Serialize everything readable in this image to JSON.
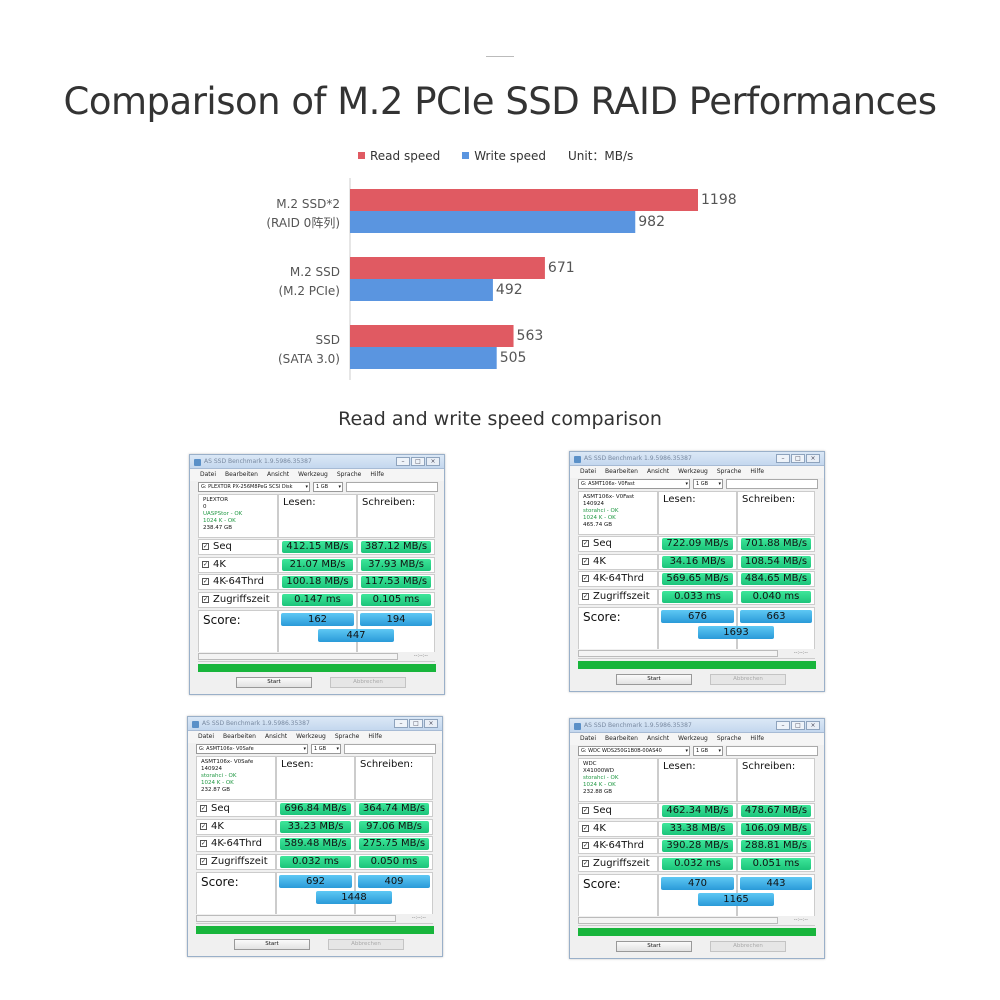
{
  "page": {
    "title": "Comparison of M.2 PCIe SSD RAID Performances",
    "subtitle": "Read and write speed comparison"
  },
  "colors": {
    "read": "#e05a62",
    "write": "#5a95e0",
    "axis": "#cccccc"
  },
  "chart_data": {
    "type": "bar",
    "orientation": "horizontal",
    "title": "Comparison of M.2 PCIe SSD RAID Performances",
    "legend": [
      "Read speed",
      "Write speed"
    ],
    "unit": "Unit：MB/s",
    "categories": [
      {
        "line1": "M.2  SSD*2",
        "line2": "(RAID 0阵列)"
      },
      {
        "line1": "M.2 SSD",
        "line2": "(M.2 PCIe)"
      },
      {
        "line1": "SSD",
        "line2": "(SATA 3.0)"
      }
    ],
    "series": [
      {
        "name": "Read speed",
        "values": [
          1198,
          671,
          563
        ]
      },
      {
        "name": "Write speed",
        "values": [
          982,
          492,
          505
        ]
      }
    ],
    "xlim": [
      0,
      1198
    ]
  },
  "windows": [
    {
      "title": "AS SSD Benchmark 1.9.5986.35387",
      "menu": [
        "Datei",
        "Bearbeiten",
        "Ansicht",
        "Werkzeug",
        "Sprache",
        "Hilfe"
      ],
      "drive": "G: PLEXTOR PX-256M8PeG SCSI Disk",
      "size": "1 GB",
      "info": [
        "PLEXTOR",
        "0",
        "UASPStor - OK",
        "1024 K - OK",
        "238.47 GB"
      ],
      "col_read": "Lesen:",
      "col_write": "Schreiben:",
      "rows": [
        {
          "label": "Seq",
          "read": "412.15 MB/s",
          "write": "387.12 MB/s"
        },
        {
          "label": "4K",
          "read": "21.07 MB/s",
          "write": "37.93 MB/s"
        },
        {
          "label": "4K-64Thrd",
          "read": "100.18 MB/s",
          "write": "117.53 MB/s"
        },
        {
          "label": "Zugriffszeit",
          "read": "0.147 ms",
          "write": "0.105 ms"
        }
      ],
      "score_label": "Score:",
      "score_read": "162",
      "score_write": "194",
      "score_total": "447",
      "time": "--:--:--",
      "start": "Start",
      "abort": "Abbrechen"
    },
    {
      "title": "AS SSD Benchmark 1.9.5986.35387",
      "menu": [
        "Datei",
        "Bearbeiten",
        "Ansicht",
        "Werkzeug",
        "Sprache",
        "Hilfe"
      ],
      "drive": "G: ASMT106x- V0Fast",
      "size": "1 GB",
      "info": [
        "ASMT106x- V0Fast",
        "140924",
        "storahci - OK",
        "1024 K - OK",
        "465.74 GB"
      ],
      "col_read": "Lesen:",
      "col_write": "Schreiben:",
      "rows": [
        {
          "label": "Seq",
          "read": "722.09 MB/s",
          "write": "701.88 MB/s"
        },
        {
          "label": "4K",
          "read": "34.16 MB/s",
          "write": "108.54 MB/s"
        },
        {
          "label": "4K-64Thrd",
          "read": "569.65 MB/s",
          "write": "484.65 MB/s"
        },
        {
          "label": "Zugriffszeit",
          "read": "0.033 ms",
          "write": "0.040 ms"
        }
      ],
      "score_label": "Score:",
      "score_read": "676",
      "score_write": "663",
      "score_total": "1693",
      "time": "--:--:--",
      "start": "Start",
      "abort": "Abbrechen"
    },
    {
      "title": "AS SSD Benchmark 1.9.5986.35387",
      "menu": [
        "Datei",
        "Bearbeiten",
        "Ansicht",
        "Werkzeug",
        "Sprache",
        "Hilfe"
      ],
      "drive": "G: ASMT106x- V0Safe",
      "size": "1 GB",
      "info": [
        "ASMT106x- V0Safe",
        "140924",
        "storahci - OK",
        "1024 K - OK",
        "232.87 GB"
      ],
      "col_read": "Lesen:",
      "col_write": "Schreiben:",
      "rows": [
        {
          "label": "Seq",
          "read": "696.84 MB/s",
          "write": "364.74 MB/s"
        },
        {
          "label": "4K",
          "read": "33.23 MB/s",
          "write": "97.06 MB/s"
        },
        {
          "label": "4K-64Thrd",
          "read": "589.48 MB/s",
          "write": "275.75 MB/s"
        },
        {
          "label": "Zugriffszeit",
          "read": "0.032 ms",
          "write": "0.050 ms"
        }
      ],
      "score_label": "Score:",
      "score_read": "692",
      "score_write": "409",
      "score_total": "1448",
      "time": "--:--:--",
      "start": "Start",
      "abort": "Abbrechen"
    },
    {
      "title": "AS SSD Benchmark 1.9.5986.35387",
      "menu": [
        "Datei",
        "Bearbeiten",
        "Ansicht",
        "Werkzeug",
        "Sprache",
        "Hilfe"
      ],
      "drive": "G: WDC WDS250G1B0B-00AS40",
      "size": "1 GB",
      "info": [
        "WDC",
        "X41000WD",
        "storahci - OK",
        "1024 K - OK",
        "232.88 GB"
      ],
      "col_read": "Lesen:",
      "col_write": "Schreiben:",
      "rows": [
        {
          "label": "Seq",
          "read": "462.34 MB/s",
          "write": "478.67 MB/s"
        },
        {
          "label": "4K",
          "read": "33.38 MB/s",
          "write": "106.09 MB/s"
        },
        {
          "label": "4K-64Thrd",
          "read": "390.28 MB/s",
          "write": "288.81 MB/s"
        },
        {
          "label": "Zugriffszeit",
          "read": "0.032 ms",
          "write": "0.051 ms"
        }
      ],
      "score_label": "Score:",
      "score_read": "470",
      "score_write": "443",
      "score_total": "1165",
      "time": "--:--:--",
      "start": "Start",
      "abort": "Abbrechen"
    }
  ]
}
